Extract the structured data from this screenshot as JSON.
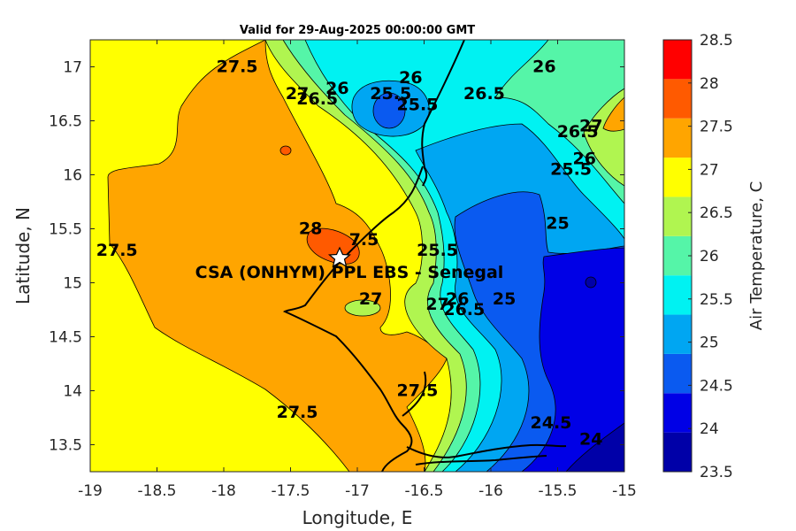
{
  "title": "Valid for 29-Aug-2025 00:00:00 GMT",
  "chart_data": {
    "type": "contour-map",
    "xlabel": "Longitude, E",
    "ylabel": "Latitude, N",
    "xlim": [
      -19,
      -15
    ],
    "ylim": [
      13.25,
      17.25
    ],
    "x_ticks": [
      "-19",
      "-18.5",
      "-18",
      "-17.5",
      "-17",
      "-16.5",
      "-16",
      "-15.5",
      "-15"
    ],
    "y_ticks": [
      "13.5",
      "14",
      "14.5",
      "15",
      "15.5",
      "16",
      "16.5",
      "17"
    ],
    "colorbar": {
      "label": "Air Temperature, C",
      "ticks": [
        "23.5",
        "24",
        "24.5",
        "25",
        "25.5",
        "26",
        "26.5",
        "27",
        "27.5",
        "28",
        "28.5"
      ],
      "colors": [
        "#0000a8",
        "#0000e6",
        "#0a5af0",
        "#00a6f2",
        "#00f2f2",
        "#55f5a8",
        "#b0f550",
        "#ffff00",
        "#ffa500",
        "#ff5a00",
        "#ff0000"
      ]
    },
    "contour_labels": [
      {
        "text": "27.5",
        "lon": -17.9,
        "lat": 16.95
      },
      {
        "text": "27",
        "lon": -17.45,
        "lat": 16.7
      },
      {
        "text": "26.5",
        "lon": -17.3,
        "lat": 16.65
      },
      {
        "text": "26",
        "lon": -17.15,
        "lat": 16.75
      },
      {
        "text": "25.5",
        "lon": -16.75,
        "lat": 16.7
      },
      {
        "text": "26",
        "lon": -16.6,
        "lat": 16.85
      },
      {
        "text": "25.5",
        "lon": -16.55,
        "lat": 16.6
      },
      {
        "text": "26.5",
        "lon": -16.05,
        "lat": 16.7
      },
      {
        "text": "26",
        "lon": -15.6,
        "lat": 16.95
      },
      {
        "text": "27",
        "lon": -15.25,
        "lat": 16.4
      },
      {
        "text": "26.5",
        "lon": -15.35,
        "lat": 16.35
      },
      {
        "text": "26",
        "lon": -15.3,
        "lat": 16.1
      },
      {
        "text": "25.5",
        "lon": -15.4,
        "lat": 16.0
      },
      {
        "text": "25",
        "lon": -15.5,
        "lat": 15.5
      },
      {
        "text": "28",
        "lon": -17.35,
        "lat": 15.45
      },
      {
        "text": "27.5",
        "lon": -18.8,
        "lat": 15.25
      },
      {
        "text": "7.5",
        "lon": -16.95,
        "lat": 15.35
      },
      {
        "text": "25.5",
        "lon": -16.4,
        "lat": 15.25
      },
      {
        "text": "27",
        "lon": -16.9,
        "lat": 14.8
      },
      {
        "text": "26",
        "lon": -16.25,
        "lat": 14.8
      },
      {
        "text": "26.5",
        "lon": -16.2,
        "lat": 14.7
      },
      {
        "text": "27",
        "lon": -16.4,
        "lat": 14.75
      },
      {
        "text": "25",
        "lon": -15.9,
        "lat": 14.8
      },
      {
        "text": "27.5",
        "lon": -16.55,
        "lat": 13.95
      },
      {
        "text": "27.5",
        "lon": -17.45,
        "lat": 13.75
      },
      {
        "text": "24.5",
        "lon": -15.55,
        "lat": 13.65
      },
      {
        "text": "24",
        "lon": -15.25,
        "lat": 13.5
      }
    ],
    "site": {
      "label": "CSA (ONHYM) PPL EBS - Senegal",
      "lon": -17.12,
      "lat": 15.23
    }
  }
}
